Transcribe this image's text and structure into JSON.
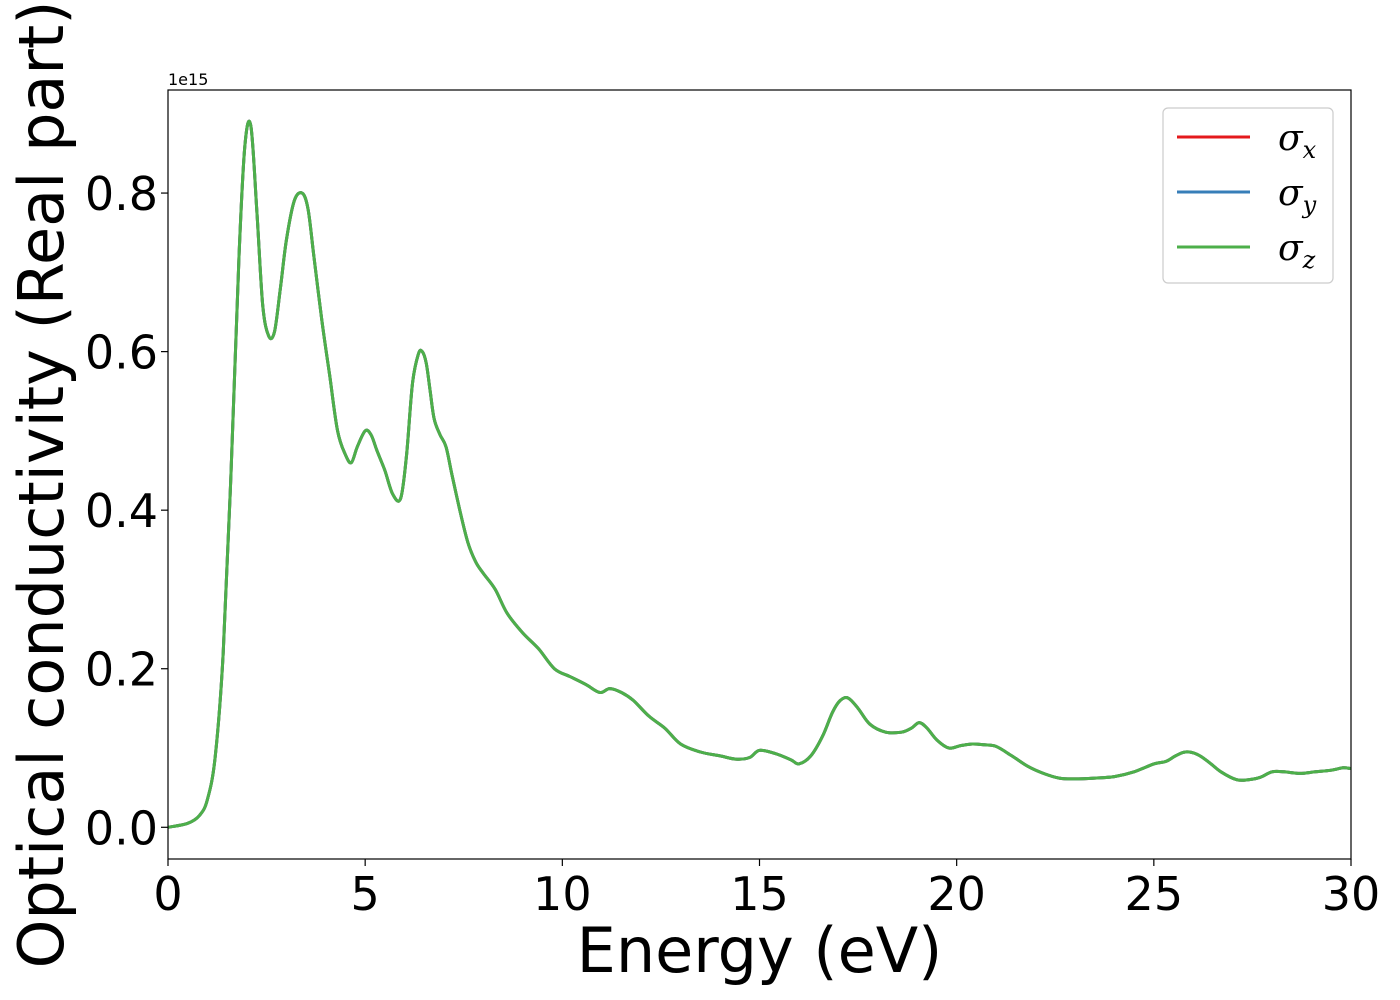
{
  "chart_data": {
    "type": "line",
    "xlabel": "Energy (eV)",
    "ylabel": "Optical conductivity (Real part)",
    "y_offset_text": "1e15",
    "xlim": [
      0,
      30
    ],
    "ylim": [
      -0.04,
      0.93
    ],
    "x_ticks": [
      0,
      5,
      10,
      15,
      20,
      25,
      30
    ],
    "x_tick_labels": [
      "0",
      "5",
      "10",
      "15",
      "20",
      "25",
      "30"
    ],
    "y_ticks": [
      0.0,
      0.2,
      0.4,
      0.6,
      0.8
    ],
    "y_tick_labels": [
      "0.0",
      "0.2",
      "0.4",
      "0.6",
      "0.8"
    ],
    "grid": false,
    "legend_position": "top-right",
    "x": [
      0,
      0.5,
      0.8,
      1.0,
      1.2,
      1.4,
      1.6,
      1.8,
      1.95,
      2.1,
      2.25,
      2.4,
      2.55,
      2.7,
      2.85,
      3.0,
      3.2,
      3.4,
      3.55,
      3.7,
      3.9,
      4.1,
      4.3,
      4.5,
      4.65,
      4.8,
      5.0,
      5.15,
      5.3,
      5.5,
      5.7,
      5.9,
      6.05,
      6.2,
      6.35,
      6.45,
      6.55,
      6.65,
      6.75,
      6.9,
      7.05,
      7.2,
      7.4,
      7.6,
      7.8,
      8.0,
      8.3,
      8.6,
      9.0,
      9.4,
      9.8,
      10.2,
      10.6,
      10.95,
      11.2,
      11.5,
      11.8,
      12.2,
      12.6,
      13.0,
      13.5,
      14.0,
      14.4,
      14.75,
      15.0,
      15.4,
      15.8,
      16.0,
      16.3,
      16.6,
      16.85,
      17.05,
      17.25,
      17.5,
      17.8,
      18.2,
      18.6,
      18.85,
      19.05,
      19.25,
      19.5,
      19.8,
      20.1,
      20.4,
      20.7,
      21.0,
      21.4,
      21.8,
      22.2,
      22.6,
      23.0,
      23.5,
      24.0,
      24.5,
      25.0,
      25.3,
      25.55,
      25.8,
      26.1,
      26.4,
      26.7,
      27.1,
      27.4,
      27.7,
      28.0,
      28.3,
      28.7,
      29.1,
      29.5,
      29.8,
      30.0
    ],
    "series": [
      {
        "name": "x",
        "color": "#e41a1c",
        "values": [
          0.0,
          0.005,
          0.015,
          0.035,
          0.09,
          0.22,
          0.45,
          0.72,
          0.86,
          0.885,
          0.78,
          0.66,
          0.62,
          0.625,
          0.68,
          0.74,
          0.79,
          0.8,
          0.78,
          0.72,
          0.64,
          0.57,
          0.5,
          0.47,
          0.46,
          0.48,
          0.5,
          0.495,
          0.475,
          0.45,
          0.42,
          0.415,
          0.47,
          0.56,
          0.597,
          0.6,
          0.585,
          0.55,
          0.515,
          0.495,
          0.48,
          0.445,
          0.4,
          0.36,
          0.335,
          0.32,
          0.3,
          0.27,
          0.245,
          0.225,
          0.2,
          0.19,
          0.18,
          0.17,
          0.175,
          0.17,
          0.16,
          0.14,
          0.125,
          0.105,
          0.095,
          0.09,
          0.086,
          0.088,
          0.097,
          0.093,
          0.085,
          0.08,
          0.09,
          0.115,
          0.145,
          0.16,
          0.163,
          0.15,
          0.13,
          0.12,
          0.12,
          0.125,
          0.132,
          0.125,
          0.11,
          0.1,
          0.103,
          0.105,
          0.104,
          0.102,
          0.09,
          0.077,
          0.068,
          0.062,
          0.061,
          0.062,
          0.064,
          0.07,
          0.08,
          0.083,
          0.09,
          0.095,
          0.092,
          0.082,
          0.07,
          0.06,
          0.06,
          0.063,
          0.07,
          0.07,
          0.068,
          0.07,
          0.072,
          0.075,
          0.074
        ]
      },
      {
        "name": "y",
        "color": "#377eb8",
        "values": [
          0.0,
          0.005,
          0.015,
          0.035,
          0.09,
          0.22,
          0.45,
          0.72,
          0.86,
          0.885,
          0.78,
          0.66,
          0.62,
          0.625,
          0.68,
          0.74,
          0.79,
          0.8,
          0.78,
          0.72,
          0.64,
          0.57,
          0.5,
          0.47,
          0.46,
          0.48,
          0.5,
          0.495,
          0.475,
          0.45,
          0.42,
          0.415,
          0.47,
          0.56,
          0.597,
          0.6,
          0.585,
          0.55,
          0.515,
          0.495,
          0.48,
          0.445,
          0.4,
          0.36,
          0.335,
          0.32,
          0.3,
          0.27,
          0.245,
          0.225,
          0.2,
          0.19,
          0.18,
          0.17,
          0.175,
          0.17,
          0.16,
          0.14,
          0.125,
          0.105,
          0.095,
          0.09,
          0.086,
          0.088,
          0.097,
          0.093,
          0.085,
          0.08,
          0.09,
          0.115,
          0.145,
          0.16,
          0.163,
          0.15,
          0.13,
          0.12,
          0.12,
          0.125,
          0.132,
          0.125,
          0.11,
          0.1,
          0.103,
          0.105,
          0.104,
          0.102,
          0.09,
          0.077,
          0.068,
          0.062,
          0.061,
          0.062,
          0.064,
          0.07,
          0.08,
          0.083,
          0.09,
          0.095,
          0.092,
          0.082,
          0.07,
          0.06,
          0.06,
          0.063,
          0.07,
          0.07,
          0.068,
          0.07,
          0.072,
          0.075,
          0.074
        ]
      },
      {
        "name": "z",
        "color": "#4daf4a",
        "values": [
          0.0,
          0.005,
          0.015,
          0.035,
          0.09,
          0.22,
          0.45,
          0.72,
          0.86,
          0.885,
          0.78,
          0.66,
          0.62,
          0.625,
          0.68,
          0.74,
          0.79,
          0.8,
          0.78,
          0.72,
          0.64,
          0.57,
          0.5,
          0.47,
          0.46,
          0.48,
          0.5,
          0.495,
          0.475,
          0.45,
          0.42,
          0.415,
          0.47,
          0.56,
          0.597,
          0.6,
          0.585,
          0.55,
          0.515,
          0.495,
          0.48,
          0.445,
          0.4,
          0.36,
          0.335,
          0.32,
          0.3,
          0.27,
          0.245,
          0.225,
          0.2,
          0.19,
          0.18,
          0.17,
          0.175,
          0.17,
          0.16,
          0.14,
          0.125,
          0.105,
          0.095,
          0.09,
          0.086,
          0.088,
          0.097,
          0.093,
          0.085,
          0.08,
          0.09,
          0.115,
          0.145,
          0.16,
          0.163,
          0.15,
          0.13,
          0.12,
          0.12,
          0.125,
          0.132,
          0.125,
          0.11,
          0.1,
          0.103,
          0.105,
          0.104,
          0.102,
          0.09,
          0.077,
          0.068,
          0.062,
          0.061,
          0.062,
          0.064,
          0.07,
          0.08,
          0.083,
          0.09,
          0.095,
          0.092,
          0.082,
          0.07,
          0.06,
          0.06,
          0.063,
          0.07,
          0.07,
          0.068,
          0.07,
          0.072,
          0.075,
          0.074
        ]
      }
    ],
    "legend": [
      {
        "symbol": "σ",
        "sub": "x",
        "color": "#e41a1c"
      },
      {
        "symbol": "σ",
        "sub": "y",
        "color": "#377eb8"
      },
      {
        "symbol": "σ",
        "sub": "z",
        "color": "#4daf4a"
      }
    ]
  }
}
